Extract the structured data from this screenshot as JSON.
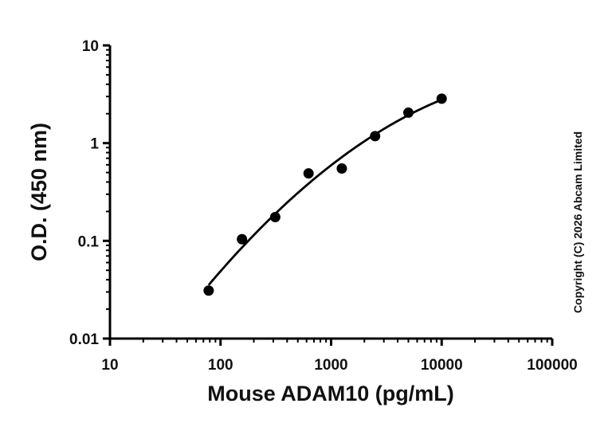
{
  "chart_data": {
    "type": "scatter",
    "xlabel": "Mouse ADAM10 (pg/mL)",
    "ylabel": "O.D. (450 nm)",
    "x_scale": "log",
    "y_scale": "log",
    "xlim": [
      10,
      100000
    ],
    "ylim": [
      0.01,
      10
    ],
    "x_ticks": [
      10,
      100,
      1000,
      10000,
      100000
    ],
    "x_tick_labels": [
      "10",
      "100",
      "1000",
      "10000",
      "100000"
    ],
    "y_ticks": [
      0.01,
      0.1,
      1,
      10
    ],
    "y_tick_labels": [
      "0.01",
      "0.1",
      "1",
      "10"
    ],
    "grid": false,
    "series": [
      {
        "x": [
          78.1,
          156.3,
          312.5,
          625,
          1250,
          2500,
          5000,
          10000
        ],
        "y": [
          0.031,
          0.104,
          0.175,
          0.49,
          0.55,
          1.18,
          2.05,
          2.85
        ],
        "color": "#000000",
        "fit_curve": true
      }
    ],
    "annotations": [
      "Copyright (C) 2026 Abcam Limited"
    ]
  }
}
